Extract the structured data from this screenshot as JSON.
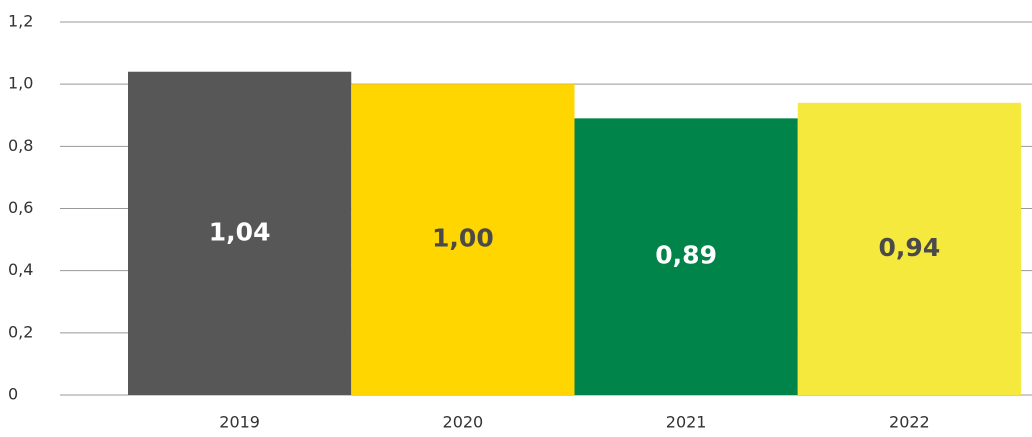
{
  "chart_data": {
    "type": "bar",
    "categories": [
      "2019",
      "2020",
      "2021",
      "2022"
    ],
    "values": [
      1.04,
      1.0,
      0.89,
      0.94
    ],
    "value_labels": [
      "1,04",
      "1,00",
      "0,89",
      "0,94"
    ],
    "colors": [
      "#575757",
      "#ffd600",
      "#00844a",
      "#f4e93c"
    ],
    "ylim": [
      0,
      1.2
    ],
    "yticks": [
      0,
      {
        "value": 0.2,
        "label": "0,2"
      },
      {
        "value": 0.4,
        "label": "0,4"
      },
      {
        "value": 0.6,
        "label": "0,6"
      },
      {
        "value": 0.8,
        "label": "0,8"
      },
      {
        "value": 1.0,
        "label": "1,0"
      },
      {
        "value": 1.2,
        "label": "1,2"
      }
    ],
    "grid": true
  }
}
